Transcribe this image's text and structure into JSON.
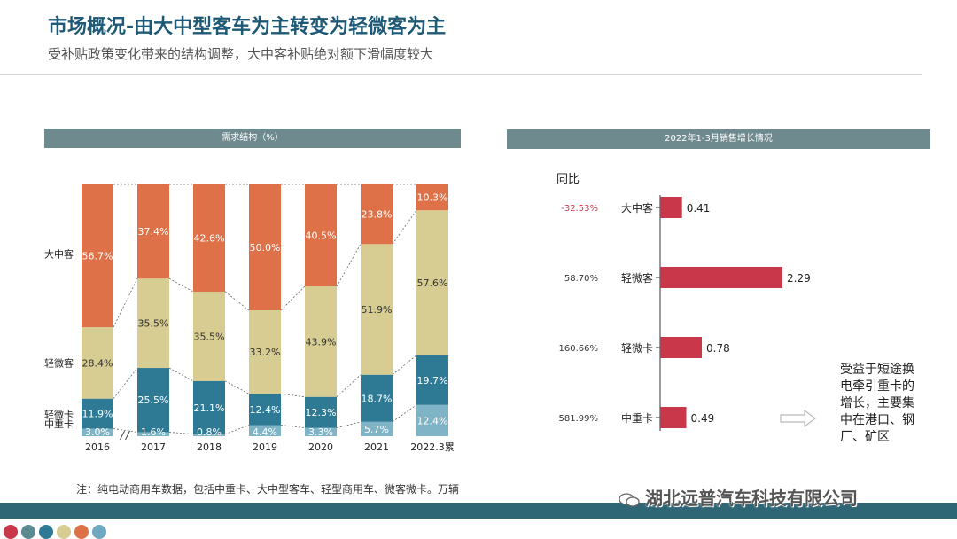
{
  "header": {
    "title": "市场概况-由大中型客车为主转变为轻微客为主",
    "subtitle": "受补贴政策变化带来的结构调整，大中客补贴绝对额下滑幅度较大"
  },
  "left_panel": {
    "heading": "需求结构（%）"
  },
  "right_panel": {
    "heading": "2022年1-3月销售增长情况",
    "yoy_label": "同比"
  },
  "note": {
    "text": "受益于短途换电牵引重卡的增长，主要集中在港口、钢厂、矿区"
  },
  "footnote": "注：纯电动商用车数据，包括中重卡、大中型客车、轻型商用车、微客微卡。万辆",
  "watermark": "湖北远普汽车科技有限公司",
  "colors": {
    "orange": "#de7148",
    "khaki": "#d7cc92",
    "teal": "#2e7a94",
    "light_teal": "#7fb3c6",
    "red_bar": "#c8384a",
    "header": "#6f8a8f",
    "band": "#2f6676",
    "dots": [
      "#c8384a",
      "#5b8a92",
      "#2e7a94",
      "#d7cc92",
      "#de7148",
      "#6fa8bf"
    ]
  },
  "chart_data": [
    {
      "type": "bar",
      "stacked": true,
      "title": "需求结构（%）",
      "categories": [
        "2016",
        "2017",
        "2018",
        "2019",
        "2020",
        "2021",
        "2022.3累"
      ],
      "series": [
        {
          "name": "中重卡",
          "values": [
            3.0,
            1.6,
            0.8,
            4.4,
            3.3,
            5.7,
            12.4
          ],
          "labels": [
            "3.0%",
            "1.6%",
            "0.8%",
            "4.4%",
            "3.3%",
            "5.7%",
            "12.4%"
          ]
        },
        {
          "name": "轻微卡",
          "values": [
            11.9,
            25.5,
            21.1,
            12.4,
            12.3,
            18.7,
            19.7
          ],
          "labels": [
            "11.9%",
            "25.5%",
            "21.1%",
            "12.4%",
            "12.3%",
            "18.7%",
            "19.7%"
          ]
        },
        {
          "name": "轻微客",
          "values": [
            28.4,
            35.5,
            35.5,
            33.2,
            43.9,
            51.9,
            57.6
          ],
          "labels": [
            "28.4%",
            "35.5%",
            "35.5%",
            "33.2%",
            "43.9%",
            "51.9%",
            "57.6%"
          ]
        },
        {
          "name": "大中客",
          "values": [
            56.7,
            37.4,
            42.6,
            50.0,
            40.5,
            23.8,
            10.3
          ],
          "labels": [
            "56.7%",
            "37.4%",
            "42.6%",
            "50.0%",
            "40.5%",
            "23.8%",
            "10.3%"
          ]
        }
      ],
      "ylim": [
        0,
        100
      ]
    },
    {
      "type": "bar",
      "orientation": "horizontal",
      "title": "2022年1-3月销售增长情况",
      "categories": [
        "大中客",
        "轻微客",
        "轻微卡",
        "中重卡"
      ],
      "values": [
        0.41,
        2.29,
        0.78,
        0.49
      ],
      "value_labels": [
        "0.41",
        "2.29",
        "0.78",
        "0.49"
      ],
      "yoy": [
        "-32.53%",
        "58.70%",
        "160.66%",
        "581.99%"
      ],
      "xlim": [
        0,
        2.6
      ]
    }
  ]
}
